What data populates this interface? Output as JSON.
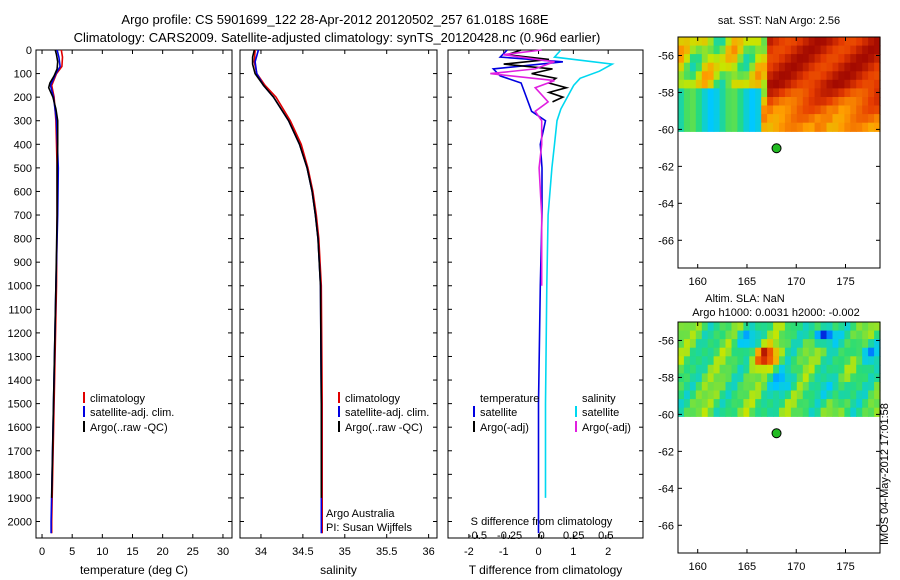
{
  "title_line1": "Argo profile: CS 5901699_122 28-Apr-2012 20120502_257 61.018S 168E",
  "title_line2": "Climatology: CARS2009. Satellite-adjusted climatology: synTS_20120428.nc (0.96d earlier)",
  "colors": {
    "climatology": "#e00000",
    "satellite": "#0000e0",
    "argo": "#000000",
    "sal_satellite": "#00d8f0",
    "sal_argo": "#e020e0",
    "marker": "#22bb22"
  },
  "chart_data": [
    {
      "type": "line",
      "name": "temperature",
      "xlabel": "temperature (deg C)",
      "xlim": [
        -1,
        31.5
      ],
      "ylim": [
        2070,
        0
      ],
      "xticks": [
        0,
        5,
        10,
        15,
        20,
        25,
        30
      ],
      "yticks": [
        0,
        100,
        200,
        300,
        400,
        500,
        600,
        700,
        800,
        900,
        1000,
        1100,
        1200,
        1300,
        1400,
        1500,
        1600,
        1700,
        1800,
        1900,
        2000
      ],
      "legend": [
        "climatology",
        "satellite-adj. clim.",
        "Argo(..raw -QC)"
      ],
      "series": [
        {
          "name": "climatology",
          "color": "#e00000",
          "depth": [
            0,
            30,
            70,
            100,
            150,
            200,
            300,
            500,
            700,
            1000,
            1500,
            2000,
            2050
          ],
          "values": [
            3.2,
            3.4,
            3.3,
            2.4,
            1.6,
            2.0,
            2.3,
            2.5,
            2.5,
            2.4,
            2.0,
            1.6,
            1.6
          ]
        },
        {
          "name": "satellite-adj. clim.",
          "color": "#0000e0",
          "depth": [
            0,
            30,
            70,
            100,
            150,
            200,
            300,
            500,
            700,
            1000,
            1500,
            2000,
            2050
          ],
          "values": [
            2.5,
            2.8,
            3.0,
            2.3,
            1.4,
            1.9,
            2.4,
            2.7,
            2.6,
            2.3,
            1.9,
            1.5,
            1.5
          ]
        },
        {
          "name": "Argo(..raw -QC)",
          "color": "#000000",
          "depth": [
            0,
            20,
            50,
            80,
            110,
            140,
            160,
            200,
            250,
            300,
            400,
            500,
            700,
            1000,
            1500,
            1900
          ],
          "values": [
            2.2,
            2.4,
            2.6,
            2.5,
            2.0,
            1.3,
            1.1,
            1.8,
            2.3,
            2.6,
            2.6,
            2.5,
            2.5,
            2.3,
            1.9,
            1.6
          ]
        }
      ]
    },
    {
      "type": "line",
      "name": "salinity",
      "xlabel": "salinity",
      "xlim": [
        33.75,
        36.1
      ],
      "ylim": [
        2070,
        0
      ],
      "xticks": [
        34,
        34.5,
        35,
        35.5,
        36
      ],
      "xticklabels": [
        "34",
        "34.5",
        "35",
        "35.5",
        "36"
      ],
      "legend": [
        "climatology",
        "satellite-adj. clim.",
        "Argo(..raw -QC)"
      ],
      "annotation": [
        "Argo Australia",
        "PI: Susan Wijffels"
      ],
      "series": [
        {
          "name": "climatology",
          "color": "#e00000",
          "depth": [
            0,
            50,
            100,
            150,
            200,
            300,
            400,
            500,
            600,
            700,
            800,
            1000,
            1500,
            2050
          ],
          "values": [
            33.93,
            33.92,
            33.95,
            34.05,
            34.18,
            34.35,
            34.48,
            34.56,
            34.62,
            34.66,
            34.69,
            34.72,
            34.73,
            34.73
          ]
        },
        {
          "name": "satellite-adj. clim.",
          "color": "#0000e0",
          "depth": [
            0,
            50,
            100,
            150,
            200,
            300,
            400,
            500,
            600,
            700,
            800,
            1000,
            1500,
            2050
          ],
          "values": [
            33.97,
            33.93,
            33.95,
            34.03,
            34.15,
            34.33,
            34.46,
            34.55,
            34.61,
            34.65,
            34.68,
            34.71,
            34.72,
            34.72
          ]
        },
        {
          "name": "Argo(..raw -QC)",
          "color": "#000000",
          "depth": [
            0,
            30,
            60,
            100,
            150,
            200,
            300,
            400,
            500,
            600,
            700,
            800,
            1000,
            1500,
            1900
          ],
          "values": [
            33.92,
            33.9,
            33.9,
            33.93,
            34.03,
            34.15,
            34.33,
            34.46,
            34.55,
            34.61,
            34.65,
            34.68,
            34.71,
            34.72,
            34.72
          ]
        }
      ]
    },
    {
      "type": "line",
      "name": "difference",
      "xlabel": "T difference from climatology",
      "xlabel_top": "S difference from climatology",
      "xlim": [
        -2.6,
        3.0
      ],
      "ylim": [
        2070,
        0
      ],
      "xticks": [
        -2,
        -1,
        0,
        1,
        2
      ],
      "s_ticks": [
        -0.5,
        -0.25,
        0,
        0.25,
        0.5
      ],
      "s_ticklabels": [
        "-0.5",
        "-0.25",
        "0",
        "0.25",
        "0.5"
      ],
      "legend_temperature": {
        "heading": "temperature",
        "items": [
          "satellite",
          "Argo(-adj)"
        ]
      },
      "legend_salinity": {
        "heading": "salinity",
        "items": [
          "satellite",
          "Argo(-adj)"
        ]
      },
      "series": [
        {
          "name": "T satellite",
          "color": "#0000e0",
          "depth": [
            0,
            30,
            50,
            80,
            110,
            140,
            180,
            220,
            260,
            300,
            400,
            500,
            700,
            1000,
            1500,
            2000,
            2050
          ],
          "values": [
            -0.9,
            -1.1,
            0.7,
            -1.3,
            -1.1,
            -0.5,
            -0.4,
            -0.3,
            -0.2,
            0.2,
            0.05,
            0.1,
            0.1,
            0.05,
            0.0,
            0.0,
            0.0
          ]
        },
        {
          "name": "T Argo(-adj)",
          "color": "#000000",
          "depth": [
            0,
            20,
            40,
            60,
            80,
            100,
            120,
            140,
            160,
            180,
            200,
            220
          ],
          "values": [
            -0.5,
            -0.9,
            0.3,
            -1.0,
            0.4,
            -0.2,
            0.5,
            0.3,
            0.8,
            0.3,
            0.7,
            0.4
          ]
        },
        {
          "name": "S satellite",
          "color": "#00d8f0",
          "depth": [
            0,
            30,
            60,
            90,
            120,
            150,
            200,
            250,
            300,
            400,
            500,
            700,
            1000,
            1500,
            1900
          ],
          "values": [
            0.15,
            0.1,
            0.55,
            0.45,
            0.3,
            0.25,
            0.2,
            0.15,
            0.12,
            0.1,
            0.08,
            0.05,
            0.04,
            0.03,
            0.03
          ]
        },
        {
          "name": "S Argo(-adj)",
          "color": "#e020e0",
          "depth": [
            0,
            20,
            50,
            80,
            100,
            130,
            160,
            190,
            220,
            260,
            300,
            400,
            500,
            700,
            1000
          ],
          "values": [
            0.0,
            -0.3,
            0.1,
            -0.05,
            -0.4,
            0.1,
            -0.05,
            0.0,
            0.05,
            -0.05,
            0.0,
            0.0,
            -0.02,
            0.0,
            0.0
          ]
        }
      ]
    },
    {
      "type": "heatmap",
      "name": "sst_map",
      "title": "sat. SST: NaN  Argo: 2.56",
      "xlim": [
        158,
        178.5
      ],
      "ylim": [
        -67.5,
        -55
      ],
      "xticks": [
        160,
        165,
        170,
        175
      ],
      "yticks": [
        -56,
        -58,
        -60,
        -62,
        -64,
        -66
      ],
      "data_bottom": -60.1,
      "marker": {
        "lon": 168,
        "lat": -61.02
      }
    },
    {
      "type": "heatmap",
      "name": "sla_map",
      "title_line1": "Altim. SLA: NaN",
      "title_line2": "Argo h1000: 0.0031 h2000: -0.002",
      "xlim": [
        158,
        178.5
      ],
      "ylim": [
        -67.5,
        -55
      ],
      "xticks": [
        160,
        165,
        170,
        175
      ],
      "yticks": [
        -56,
        -58,
        -60,
        -62,
        -64,
        -66
      ],
      "data_bottom": -60.1,
      "marker": {
        "lon": 168,
        "lat": -61.02
      }
    }
  ],
  "footer_stamp": "IMOS 04-May-2012 17:01:58"
}
